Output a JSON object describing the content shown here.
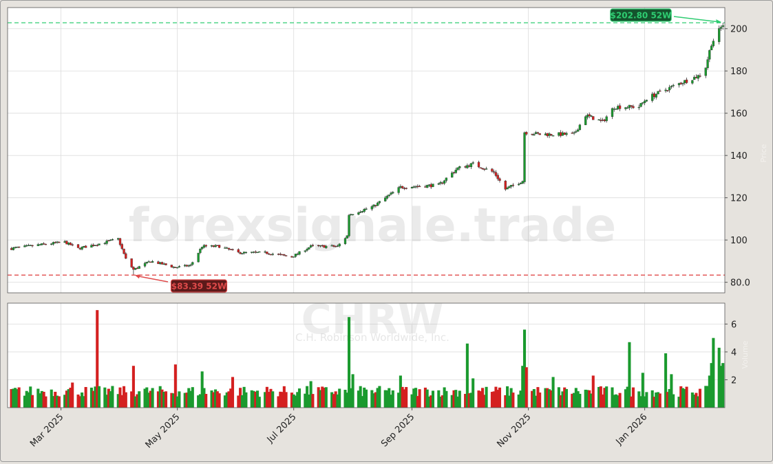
{
  "watermark": "forexsignale.trade",
  "ticker": "CHRW",
  "company_name": "C.H. Robinson Worldwide, Inc.",
  "colors": {
    "up": "#1a9a2e",
    "down": "#d42020",
    "high_line": "#2ecc71",
    "low_line": "#e04a4a",
    "grid": "#dcdcdc",
    "plot_bg": "#ffffff",
    "frame_bg": "#e6e3de"
  },
  "chart_data": [
    {
      "type": "candlestick",
      "title": "",
      "ylim": [
        75,
        210
      ],
      "yticks": [
        80,
        100,
        120,
        140,
        160,
        180,
        200
      ],
      "ytick_labels": [
        "80.0",
        "100",
        "120",
        "140",
        "160",
        "180",
        "200"
      ],
      "ylabel": "Price",
      "x_range": [
        "2025-02-01",
        "2026-02-12"
      ],
      "xticks": [
        "2025-03-01",
        "2025-05-01",
        "2025-07-01",
        "2025-09-01",
        "2025-11-01",
        "2026-01-01"
      ],
      "xtick_labels": [
        "Mar 2025",
        "May 2025",
        "Jul 2025",
        "Sep 2025",
        "Nov 2025",
        "Jan 2026"
      ],
      "grid": true,
      "price_anchors": [
        [
          "2025-02-03",
          96
        ],
        [
          "2025-02-20",
          98
        ],
        [
          "2025-03-03",
          99
        ],
        [
          "2025-03-10",
          96
        ],
        [
          "2025-03-20",
          98
        ],
        [
          "2025-03-31",
          100.5
        ],
        [
          "2025-04-04",
          91
        ],
        [
          "2025-04-08",
          86
        ],
        [
          "2025-04-17",
          90
        ],
        [
          "2025-04-30",
          87
        ],
        [
          "2025-05-08",
          88
        ],
        [
          "2025-05-14",
          97
        ],
        [
          "2025-05-23",
          97
        ],
        [
          "2025-06-02",
          94
        ],
        [
          "2025-06-16",
          94
        ],
        [
          "2025-06-30",
          92
        ],
        [
          "2025-07-10",
          97
        ],
        [
          "2025-07-24",
          97
        ],
        [
          "2025-07-29",
          102
        ],
        [
          "2025-07-30",
          112
        ],
        [
          "2025-08-12",
          116
        ],
        [
          "2025-08-26",
          125
        ],
        [
          "2025-09-15",
          126
        ],
        [
          "2025-09-25",
          134
        ],
        [
          "2025-10-03",
          136
        ],
        [
          "2025-10-14",
          132
        ],
        [
          "2025-10-20",
          124
        ],
        [
          "2025-10-29",
          128
        ],
        [
          "2025-10-30",
          151
        ],
        [
          "2025-11-07",
          150
        ],
        [
          "2025-11-25",
          150
        ],
        [
          "2025-12-01",
          159
        ],
        [
          "2025-12-10",
          156
        ],
        [
          "2025-12-16",
          163
        ],
        [
          "2025-12-29",
          163
        ],
        [
          "2026-01-02",
          167
        ],
        [
          "2026-01-19",
          174
        ],
        [
          "2026-01-30",
          178
        ],
        [
          "2026-02-02",
          182
        ],
        [
          "2026-02-05",
          193
        ],
        [
          "2026-02-09",
          199
        ],
        [
          "2026-02-11",
          202
        ]
      ],
      "high_52w": {
        "value": 202.8,
        "date": "2026-02-11",
        "label": "$202.80 52W"
      },
      "low_52w": {
        "value": 83.39,
        "date": "2025-04-08",
        "label": "$83.39 52W"
      }
    },
    {
      "type": "bar",
      "title": "Volume",
      "ylabel": "Volume",
      "ylim": [
        0,
        7.5
      ],
      "yticks": [
        2,
        4,
        6
      ],
      "ytick_labels": [
        "2",
        "4",
        "6"
      ],
      "base_volume": 1.3,
      "volume_spikes": [
        [
          "2025-03-07",
          1.8
        ],
        [
          "2025-03-20",
          7.0
        ],
        [
          "2025-04-08",
          3.0
        ],
        [
          "2025-04-30",
          3.1
        ],
        [
          "2025-05-14",
          2.6
        ],
        [
          "2025-05-30",
          2.2
        ],
        [
          "2025-07-10",
          1.9
        ],
        [
          "2025-07-30",
          6.5
        ],
        [
          "2025-08-01",
          2.4
        ],
        [
          "2025-08-26",
          2.3
        ],
        [
          "2025-09-30",
          4.6
        ],
        [
          "2025-10-03",
          2.1
        ],
        [
          "2025-10-29",
          3.0
        ],
        [
          "2025-10-30",
          5.6
        ],
        [
          "2025-10-31",
          2.9
        ],
        [
          "2025-11-14",
          2.2
        ],
        [
          "2025-12-05",
          2.3
        ],
        [
          "2025-12-24",
          4.7
        ],
        [
          "2025-12-31",
          2.5
        ],
        [
          "2026-01-12",
          3.9
        ],
        [
          "2026-01-15",
          2.4
        ],
        [
          "2026-02-04",
          2.3
        ],
        [
          "2026-02-05",
          3.2
        ],
        [
          "2026-02-06",
          5.0
        ],
        [
          "2026-02-09",
          4.3
        ],
        [
          "2026-02-10",
          3.0
        ],
        [
          "2026-02-11",
          3.2
        ]
      ]
    }
  ]
}
